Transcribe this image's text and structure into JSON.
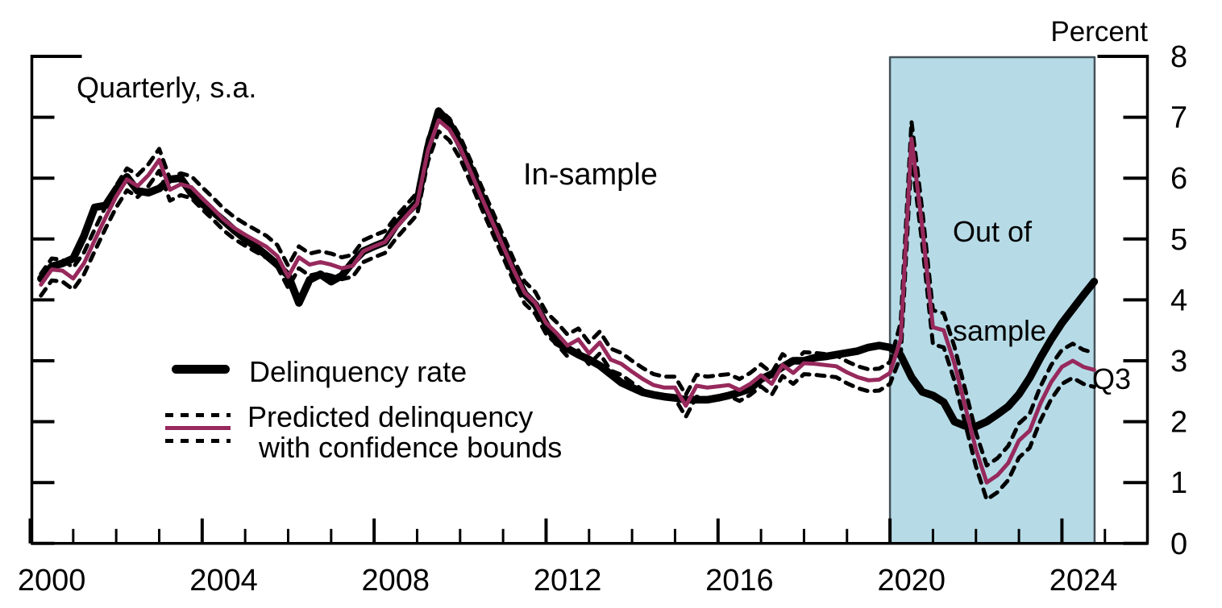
{
  "annotations": {
    "frequency_note": "Quarterly, s.a.",
    "unit_label": "Percent",
    "in_sample_label": "In-sample",
    "out_of_sample_line1": "Out of",
    "out_of_sample_line2": "sample",
    "last_point_label": "Q3"
  },
  "legend": {
    "actual_label": "Delinquency rate",
    "predicted_label_line1": "Predicted delinquency",
    "predicted_label_line2": " with confidence bounds"
  },
  "colors": {
    "actual_line": "#000000",
    "predicted_line": "#97295c",
    "confidence_bounds": "#000000",
    "out_of_sample_fill": "#b6dbe7",
    "out_of_sample_border": "#45525a",
    "axis": "#000000",
    "text": "#000000",
    "background": "#ffffff"
  },
  "chart_data": {
    "type": "line",
    "title": "",
    "frequency_note": "Quarterly, s.a.",
    "ylabel": "Percent",
    "ylim": [
      0,
      8
    ],
    "y_ticks": [
      0,
      1,
      2,
      3,
      4,
      5,
      6,
      7,
      8
    ],
    "xlim": [
      2000,
      2026
    ],
    "x_ticks_major": [
      2000,
      2004,
      2008,
      2012,
      2016,
      2020,
      2024
    ],
    "x_minor_tick_year_range": [
      2000,
      2025
    ],
    "quarters_start": "2000Q1",
    "quarters_end": "2024Q3",
    "out_of_sample_start": "2020Q1",
    "out_of_sample_shading_years": [
      2020.0,
      2024.76
    ],
    "series": [
      {
        "name": "Delinquency rate",
        "style": "solid-thick",
        "values": [
          4.35,
          4.55,
          4.6,
          4.68,
          5.05,
          5.52,
          5.55,
          5.82,
          6.02,
          5.79,
          5.76,
          5.83,
          5.98,
          6.0,
          5.75,
          5.58,
          5.45,
          5.3,
          5.14,
          5.0,
          4.87,
          4.73,
          4.58,
          4.4,
          3.95,
          4.33,
          4.42,
          4.3,
          4.4,
          4.62,
          4.8,
          4.88,
          4.95,
          5.22,
          5.42,
          5.6,
          6.5,
          7.1,
          6.9,
          6.55,
          6.15,
          5.7,
          5.3,
          4.9,
          4.45,
          4.1,
          3.92,
          3.6,
          3.3,
          3.2,
          3.1,
          3.02,
          2.92,
          2.78,
          2.64,
          2.56,
          2.48,
          2.44,
          2.41,
          2.39,
          2.36,
          2.36,
          2.36,
          2.39,
          2.43,
          2.48,
          2.54,
          2.7,
          2.78,
          2.9,
          3.0,
          3.0,
          3.05,
          3.07,
          3.1,
          3.13,
          3.16,
          3.22,
          3.25,
          3.22,
          3.09,
          2.73,
          2.49,
          2.43,
          2.32,
          2.0,
          1.93,
          1.92,
          2.0,
          2.12,
          2.25,
          2.45,
          2.72,
          3.05,
          3.35,
          3.62,
          3.85,
          4.08,
          4.3
        ]
      },
      {
        "name": "Predicted delinquency",
        "style": "solid",
        "values": [
          4.25,
          4.5,
          4.48,
          4.35,
          4.6,
          4.98,
          5.35,
          5.7,
          5.98,
          5.87,
          6.05,
          6.3,
          5.81,
          5.9,
          5.85,
          5.67,
          5.5,
          5.32,
          5.18,
          5.07,
          4.97,
          4.87,
          4.72,
          4.38,
          4.7,
          4.58,
          4.62,
          4.58,
          4.52,
          4.56,
          4.8,
          4.88,
          4.95,
          5.18,
          5.38,
          5.58,
          6.45,
          6.95,
          6.8,
          6.5,
          6.1,
          5.68,
          5.28,
          4.88,
          4.48,
          4.12,
          3.95,
          3.62,
          3.45,
          3.25,
          3.35,
          3.12,
          3.3,
          3.02,
          2.95,
          2.82,
          2.7,
          2.6,
          2.56,
          2.56,
          2.26,
          2.59,
          2.56,
          2.58,
          2.6,
          2.52,
          2.62,
          2.76,
          2.62,
          2.93,
          2.8,
          2.96,
          2.95,
          2.93,
          2.91,
          2.81,
          2.73,
          2.68,
          2.69,
          2.8,
          3.35,
          6.65,
          5.2,
          3.55,
          3.5,
          2.95,
          2.25,
          1.54,
          1.0,
          1.12,
          1.32,
          1.69,
          1.85,
          2.3,
          2.65,
          2.9,
          3.0,
          2.9,
          2.85
        ]
      }
    ],
    "confidence_band": {
      "around": "Predicted delinquency",
      "style": "dashed",
      "halfwidth_in_sample": 0.18,
      "halfwidth_out_of_sample": 0.28
    },
    "legend_position": "middle-left",
    "grid": false
  }
}
